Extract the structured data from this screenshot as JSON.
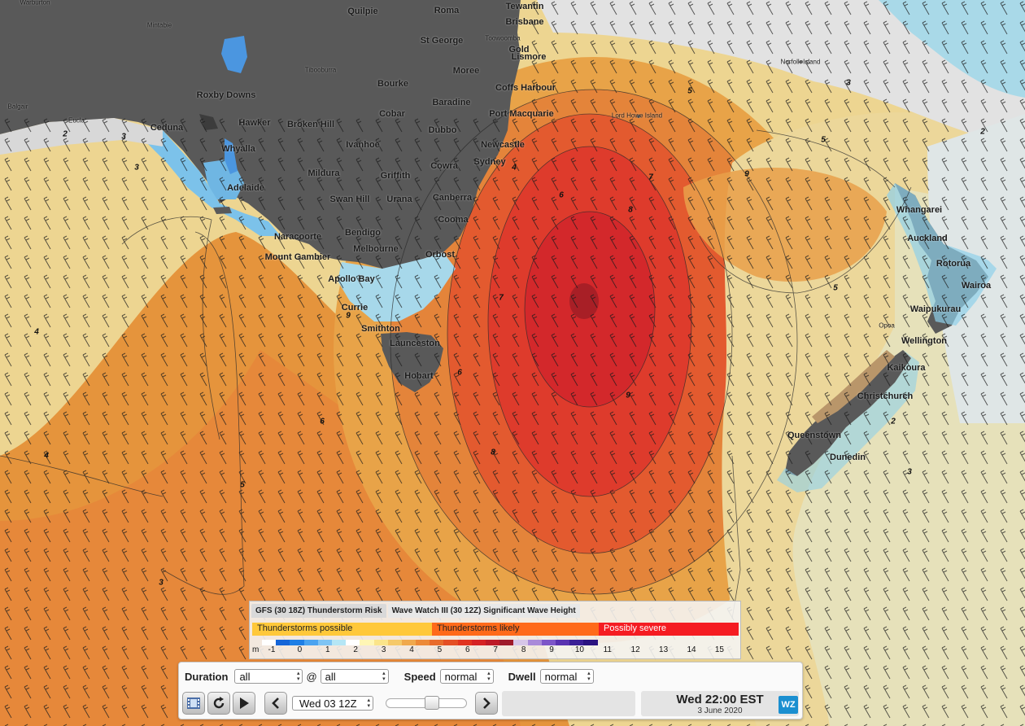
{
  "map": {
    "places": [
      {
        "name": "Warburton",
        "small": true
      },
      {
        "name": "Mintabie",
        "small": true
      },
      {
        "name": "Quilpie"
      },
      {
        "name": "Roma"
      },
      {
        "name": "Tewantin"
      },
      {
        "name": "Brisbane"
      },
      {
        "name": "Toowoomba",
        "small": true
      },
      {
        "name": "St George"
      },
      {
        "name": "Gold"
      },
      {
        "name": "Lismore"
      },
      {
        "name": "Norfolk Island",
        "small": true
      },
      {
        "name": "Tibooburra",
        "small": true
      },
      {
        "name": "Moree"
      },
      {
        "name": "Bourke"
      },
      {
        "name": "Coffs Harbour"
      },
      {
        "name": "Roxby Downs"
      },
      {
        "name": "Baradine"
      },
      {
        "name": "Balgair",
        "small": true
      },
      {
        "name": "Cobar"
      },
      {
        "name": "Port Macquarie"
      },
      {
        "name": "Lord Howe Island",
        "small": true
      },
      {
        "name": "Eucla",
        "small": true
      },
      {
        "name": "Ceduna"
      },
      {
        "name": "Hawker"
      },
      {
        "name": "Broken Hill"
      },
      {
        "name": "Dubbo"
      },
      {
        "name": "Newcastle"
      },
      {
        "name": "Whyalla"
      },
      {
        "name": "Ivanhoe"
      },
      {
        "name": "Sydney"
      },
      {
        "name": "Mildura"
      },
      {
        "name": "Griffith"
      },
      {
        "name": "Cowra"
      },
      {
        "name": "Adelaide"
      },
      {
        "name": "Swan Hill"
      },
      {
        "name": "Urana"
      },
      {
        "name": "Canberra"
      },
      {
        "name": "Whangarei"
      },
      {
        "name": "Cooma"
      },
      {
        "name": "Naracoorte"
      },
      {
        "name": "Bendigo"
      },
      {
        "name": "Auckland"
      },
      {
        "name": "Melbourne"
      },
      {
        "name": "Mount Gambier"
      },
      {
        "name": "Orbost"
      },
      {
        "name": "Rotorua"
      },
      {
        "name": "Apollo Bay"
      },
      {
        "name": "Wairoa"
      },
      {
        "name": "Currie"
      },
      {
        "name": "Waipukurau"
      },
      {
        "name": "Smithton"
      },
      {
        "name": "Opoa",
        "small": true
      },
      {
        "name": "Wellington"
      },
      {
        "name": "Launceston"
      },
      {
        "name": "Kaikoura"
      },
      {
        "name": "Hobart"
      },
      {
        "name": "Christchurch"
      },
      {
        "name": "Queenstown"
      },
      {
        "name": "Dunedin"
      }
    ],
    "contour_labels": [
      "2",
      "3",
      "3",
      "4",
      "4",
      "4",
      "5",
      "5",
      "5",
      "5",
      "6",
      "6",
      "6",
      "7",
      "7",
      "8",
      "8",
      "9",
      "9",
      "9",
      "3",
      "3",
      "2",
      "2",
      "3"
    ],
    "colors": {
      "land": "#595959",
      "sea_low": "#dfdfdf",
      "sea_mid": "#e8d79a",
      "sea_orange": "#e3913a",
      "sea_red": "#dc3a2c",
      "sea_darkred": "#a81f26"
    }
  },
  "legend": {
    "tabs": [
      "GFS (30 18Z) Thunderstorm Risk",
      "Wave Watch III (30 12Z) Significant Wave Height"
    ],
    "thunderstorm": [
      {
        "label": "Thunderstorms possible",
        "color": "#ffc83a"
      },
      {
        "label": "Thunderstorms likely",
        "color": "#ff6a1a"
      },
      {
        "label": "Possibly severe",
        "color": "#f51c22"
      }
    ],
    "unit": "m",
    "scale_labels": [
      "-1",
      "0",
      "1",
      "2",
      "3",
      "4",
      "5",
      "6",
      "7",
      "8",
      "9",
      "10",
      "11",
      "12",
      "13",
      "14",
      "15"
    ],
    "scale_colors": [
      "#ffffff",
      "#1565d8",
      "#1f7fe6",
      "#4aa3f0",
      "#7fc4f4",
      "#b5e6f5",
      "#ffffff",
      "#fff6b5",
      "#fbe48a",
      "#f5c96a",
      "#f0a94d",
      "#ec8a38",
      "#e86b2c",
      "#e44e24",
      "#e1331f",
      "#d52224",
      "#bd1a27",
      "#9e1a2a",
      "#d7c6e8",
      "#a98ad9",
      "#7d56c8",
      "#5a33b0",
      "#3a1f96",
      "#2a1380"
    ]
  },
  "controls": {
    "duration_label": "Duration",
    "duration_value": "all",
    "at_symbol": "@",
    "at_value": "all",
    "speed_label": "Speed",
    "speed_value": "normal",
    "dwell_label": "Dwell",
    "dwell_value": "normal",
    "time_select": "Wed 03 12Z",
    "time_main": "Wed 22:00 EST",
    "time_date": "3 June 2020",
    "brand": "WZ"
  }
}
